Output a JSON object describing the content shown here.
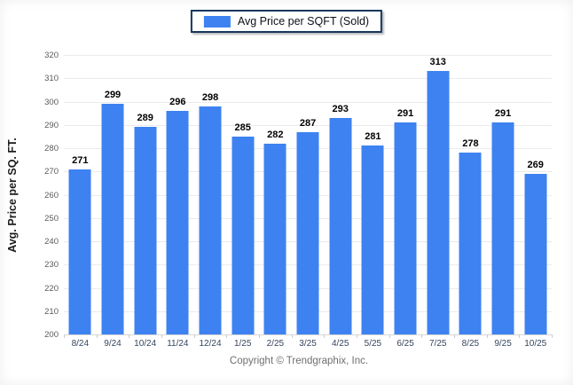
{
  "legend": {
    "label": "Avg Price per SQFT (Sold)"
  },
  "footer": {
    "text": "Copyright © Trendgraphix, Inc."
  },
  "colors": {
    "bar": "#3e82f1",
    "grid": "#ebebeb",
    "baseline": "#d6d6d6",
    "legend_border": "#17375e",
    "ytick_text": "#5a5a5f",
    "xtick_text": "#36455e",
    "value_label": "#000000"
  },
  "chart_data": {
    "type": "bar",
    "categories": [
      "8/24",
      "9/24",
      "10/24",
      "11/24",
      "12/24",
      "1/25",
      "2/25",
      "3/25",
      "4/25",
      "5/25",
      "6/25",
      "7/25",
      "8/25",
      "9/25",
      "10/25"
    ],
    "values": [
      271,
      299,
      289,
      296,
      298,
      285,
      282,
      287,
      293,
      281,
      291,
      313,
      278,
      291,
      269
    ],
    "title": "",
    "xlabel": "",
    "ylabel": "Avg. Price per SQ. FT.",
    "ylim": [
      200,
      320
    ],
    "ytick_step": 10,
    "grid": true,
    "legend_entries": [
      "Avg Price per SQFT (Sold)"
    ],
    "legend_position": "top-center",
    "value_labels_shown": true
  }
}
